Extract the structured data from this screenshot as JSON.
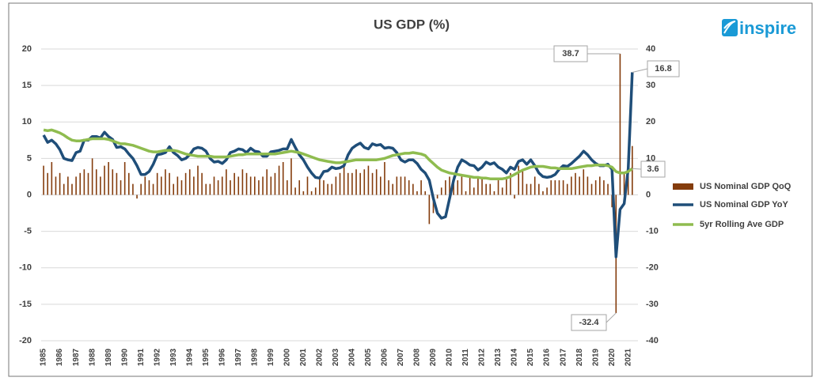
{
  "chart_data": {
    "type": "combo",
    "title": "US GDP (%)",
    "logo": "inspire",
    "x": [
      1985,
      1985.25,
      1985.5,
      1985.75,
      1986,
      1986.25,
      1986.5,
      1986.75,
      1987,
      1987.25,
      1987.5,
      1987.75,
      1988,
      1988.25,
      1988.5,
      1988.75,
      1989,
      1989.25,
      1989.5,
      1989.75,
      1990,
      1990.25,
      1990.5,
      1990.75,
      1991,
      1991.25,
      1991.5,
      1991.75,
      1992,
      1992.25,
      1992.5,
      1992.75,
      1993,
      1993.25,
      1993.5,
      1993.75,
      1994,
      1994.25,
      1994.5,
      1994.75,
      1995,
      1995.25,
      1995.5,
      1995.75,
      1996,
      1996.25,
      1996.5,
      1996.75,
      1997,
      1997.25,
      1997.5,
      1997.75,
      1998,
      1998.25,
      1998.5,
      1998.75,
      1999,
      1999.25,
      1999.5,
      1999.75,
      2000,
      2000.25,
      2000.5,
      2000.75,
      2001,
      2001.25,
      2001.5,
      2001.75,
      2002,
      2002.25,
      2002.5,
      2002.75,
      2003,
      2003.25,
      2003.5,
      2003.75,
      2004,
      2004.25,
      2004.5,
      2004.75,
      2005,
      2005.25,
      2005.5,
      2005.75,
      2006,
      2006.25,
      2006.5,
      2006.75,
      2007,
      2007.25,
      2007.5,
      2007.75,
      2008,
      2008.25,
      2008.5,
      2008.75,
      2009,
      2009.25,
      2009.5,
      2009.75,
      2010,
      2010.25,
      2010.5,
      2010.75,
      2011,
      2011.25,
      2011.5,
      2011.75,
      2012,
      2012.25,
      2012.5,
      2012.75,
      2013,
      2013.25,
      2013.5,
      2013.75,
      2014,
      2014.25,
      2014.5,
      2014.75,
      2015,
      2015.25,
      2015.5,
      2015.75,
      2016,
      2016.25,
      2016.5,
      2016.75,
      2017,
      2017.25,
      2017.5,
      2017.75,
      2018,
      2018.25,
      2018.5,
      2018.75,
      2019,
      2019.25,
      2019.5,
      2019.75,
      2020,
      2020.25,
      2020.5,
      2020.75,
      2021,
      2021.25
    ],
    "series": [
      {
        "name": "US Nominal GDP QoQ",
        "kind": "bar",
        "axis": "y2",
        "color": "#843c0c",
        "values": [
          8,
          6,
          9,
          5,
          6,
          3,
          5,
          3,
          5,
          6,
          7,
          6,
          10,
          7,
          5,
          8,
          9,
          7,
          6,
          4,
          9,
          6,
          3,
          -1,
          3,
          5,
          4,
          3,
          6,
          5,
          7,
          6,
          3,
          5,
          4,
          6,
          7,
          5,
          8,
          6,
          3,
          3,
          5,
          4,
          5,
          7,
          4,
          6,
          5,
          7,
          6,
          5,
          5,
          4,
          5,
          7,
          5,
          6,
          8,
          9,
          4,
          10,
          2,
          4,
          1,
          5,
          1,
          2,
          5,
          4,
          3,
          3,
          5,
          6,
          8,
          6,
          6,
          7,
          6,
          7,
          8,
          6,
          7,
          5,
          9,
          4,
          3,
          5,
          5,
          5,
          4,
          3,
          1,
          4,
          1,
          -8,
          -5,
          -1,
          2,
          4,
          5,
          5,
          4,
          5,
          1,
          5,
          2,
          5,
          5,
          3,
          3,
          1,
          4,
          2,
          5,
          6,
          -1,
          8,
          7,
          3,
          3,
          5,
          3,
          1,
          2,
          4,
          4,
          4,
          4,
          3,
          5,
          6,
          5,
          7,
          5,
          3,
          4,
          5,
          4,
          3,
          -3.4,
          -32.4,
          38.7,
          6.3,
          10.7,
          13.4
        ]
      },
      {
        "name": "US Nominal GDP YoY",
        "kind": "line",
        "color": "#1f4e79",
        "values": [
          8.2,
          7.2,
          7.5,
          7.0,
          6.2,
          5.0,
          4.8,
          4.7,
          5.8,
          6.0,
          7.5,
          7.5,
          8.0,
          8.0,
          7.8,
          8.6,
          8.0,
          7.6,
          6.5,
          6.6,
          6.3,
          5.6,
          5.0,
          4.0,
          2.8,
          2.8,
          3.2,
          4.2,
          5.5,
          5.6,
          5.8,
          6.6,
          5.8,
          5.4,
          4.8,
          5.0,
          5.5,
          6.3,
          6.5,
          6.4,
          6.0,
          5.0,
          4.5,
          4.6,
          4.3,
          4.8,
          5.8,
          6.0,
          6.3,
          6.2,
          5.8,
          6.4,
          6.0,
          5.9,
          5.3,
          5.3,
          5.9,
          6.0,
          6.1,
          6.3,
          6.3,
          7.6,
          6.5,
          5.5,
          4.8,
          3.8,
          3.0,
          2.4,
          2.3,
          3.2,
          3.3,
          3.8,
          3.6,
          3.7,
          4.0,
          5.5,
          6.4,
          6.8,
          7.1,
          6.5,
          6.3,
          7.0,
          6.8,
          6.9,
          6.4,
          6.5,
          6.4,
          5.8,
          4.8,
          4.5,
          4.8,
          4.8,
          4.3,
          3.5,
          3.0,
          2.0,
          -0.5,
          -2.5,
          -3.2,
          -3.0,
          -0.5,
          2.0,
          3.8,
          4.8,
          4.5,
          4.1,
          4.0,
          3.4,
          3.8,
          4.5,
          4.2,
          4.4,
          3.8,
          3.5,
          3.0,
          3.8,
          3.5,
          4.6,
          4.8,
          4.2,
          4.8,
          4.0,
          3.0,
          2.5,
          2.4,
          2.5,
          2.8,
          3.5,
          4.0,
          3.9,
          4.3,
          4.8,
          5.3,
          6.0,
          5.5,
          4.8,
          4.3,
          4.0,
          4.0,
          4.2,
          3.5,
          -8.5,
          -2.0,
          -1.2,
          3.6,
          16.8
        ]
      },
      {
        "name": "5yr Rolling Ave GDP",
        "kind": "line",
        "color": "#8fbc4f",
        "values": [
          8.9,
          8.8,
          8.9,
          8.7,
          8.5,
          8.2,
          7.8,
          7.5,
          7.4,
          7.4,
          7.5,
          7.6,
          7.7,
          7.7,
          7.7,
          7.7,
          7.6,
          7.4,
          7.2,
          7.0,
          7.0,
          6.9,
          6.8,
          6.6,
          6.4,
          6.2,
          6.0,
          5.9,
          5.9,
          6.0,
          6.1,
          6.1,
          6.1,
          6.0,
          5.8,
          5.6,
          5.5,
          5.4,
          5.3,
          5.3,
          5.3,
          5.3,
          5.2,
          5.2,
          5.2,
          5.2,
          5.3,
          5.4,
          5.5,
          5.5,
          5.6,
          5.6,
          5.6,
          5.6,
          5.6,
          5.6,
          5.6,
          5.6,
          5.7,
          5.8,
          5.9,
          6.0,
          5.9,
          5.8,
          5.6,
          5.4,
          5.2,
          5.0,
          4.8,
          4.7,
          4.6,
          4.5,
          4.4,
          4.4,
          4.5,
          4.6,
          4.7,
          4.8,
          4.8,
          4.8,
          4.8,
          4.8,
          4.8,
          4.9,
          5.0,
          5.2,
          5.4,
          5.5,
          5.6,
          5.7,
          5.7,
          5.8,
          5.7,
          5.6,
          5.4,
          4.8,
          4.3,
          3.8,
          3.4,
          3.2,
          3.0,
          2.9,
          2.8,
          2.7,
          2.6,
          2.5,
          2.4,
          2.4,
          2.3,
          2.3,
          2.2,
          2.2,
          2.2,
          2.2,
          2.3,
          2.5,
          2.8,
          3.1,
          3.4,
          3.6,
          3.8,
          3.9,
          3.9,
          3.9,
          3.8,
          3.7,
          3.7,
          3.6,
          3.6,
          3.6,
          3.6,
          3.7,
          3.8,
          3.9,
          4.0,
          4.0,
          4.1,
          4.1,
          4.1,
          4.0,
          3.8,
          3.2,
          3.0,
          3.0,
          3.2,
          3.6
        ]
      }
    ],
    "xlim": [
      1984.85,
      2021.6
    ],
    "xticks": [
      1985,
      1986,
      1987,
      1988,
      1989,
      1990,
      1991,
      1992,
      1993,
      1994,
      1995,
      1996,
      1997,
      1998,
      1999,
      2000,
      2001,
      2002,
      2003,
      2004,
      2005,
      2006,
      2007,
      2008,
      2009,
      2010,
      2011,
      2012,
      2013,
      2014,
      2015,
      2016,
      2017,
      2018,
      2019,
      2020,
      2021
    ],
    "ylim": [
      -20,
      20
    ],
    "yticks": [
      -20,
      -15,
      -10,
      -5,
      0,
      5,
      10,
      15,
      20
    ],
    "y2lim": [
      -40,
      40
    ],
    "y2ticks": [
      -40,
      -30,
      -20,
      -10,
      0,
      10,
      20,
      30,
      40
    ],
    "grid": true,
    "legend": "right"
  }
}
